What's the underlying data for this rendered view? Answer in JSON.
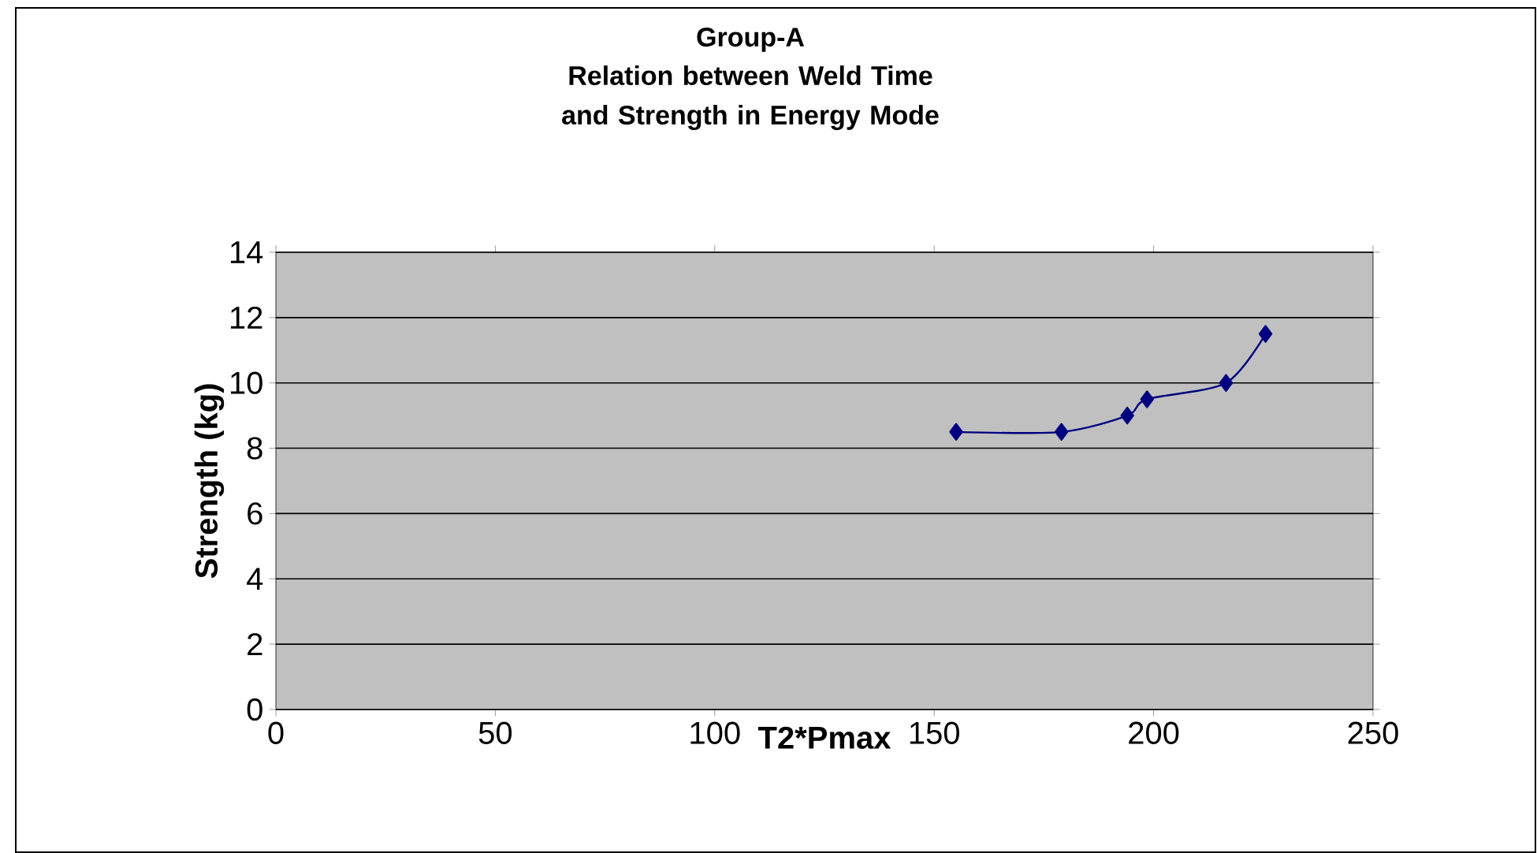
{
  "chart_data": {
    "type": "line",
    "title": "Group-A",
    "subtitle": "Relation between Weld Time and Strength  in Energy Mode",
    "xlabel": "T2*Pmax",
    "ylabel": "Strength (kg)",
    "x": [
      155,
      179,
      194,
      198.5,
      216.5,
      225.5
    ],
    "series": [
      {
        "color": "#000080",
        "values": [
          8.5,
          8.5,
          9,
          9.5,
          10,
          11.5
        ]
      }
    ],
    "xlim": [
      0,
      250
    ],
    "xticks": [
      0,
      50,
      100,
      150,
      200,
      250
    ],
    "ylim": [
      0,
      14
    ],
    "yticks": [
      0,
      2,
      4,
      6,
      8,
      10,
      12,
      14
    ],
    "grid": "y",
    "marker": "diamond",
    "line_style": "solid"
  }
}
